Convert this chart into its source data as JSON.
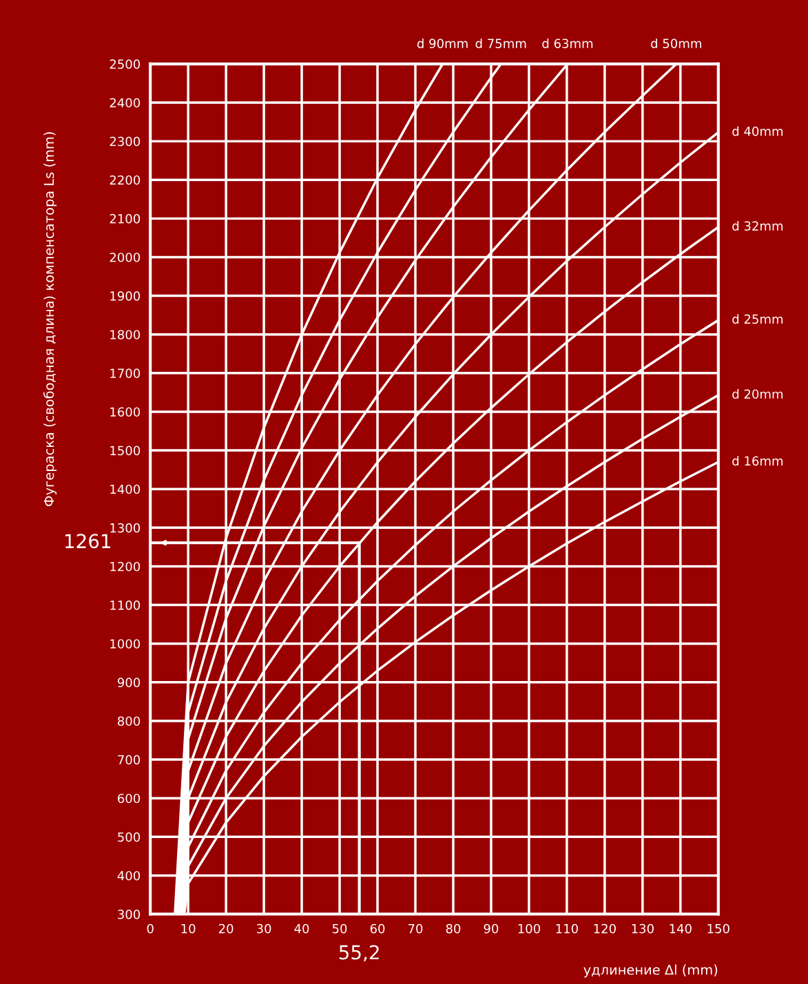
{
  "chart_data": {
    "type": "line",
    "xlabel": "удлинение Δl (mm)",
    "ylabel": "Фугераска (свободная длина) компенсатора Ls (mm)",
    "xlim": [
      0,
      150
    ],
    "ylim": [
      300,
      2500
    ],
    "xticks": [
      0,
      10,
      20,
      30,
      40,
      50,
      60,
      70,
      80,
      90,
      100,
      110,
      120,
      130,
      140,
      150
    ],
    "yticks": [
      300,
      400,
      500,
      600,
      700,
      800,
      900,
      1000,
      1100,
      1200,
      1300,
      1400,
      1500,
      1600,
      1700,
      1800,
      1900,
      2000,
      2100,
      2200,
      2300,
      2400,
      2500
    ],
    "grid": true,
    "marker": "none",
    "line_style": "solid",
    "series": [
      {
        "name": "d 90mm",
        "color": "#ffffff",
        "x": [
          6.5,
          10,
          20,
          30,
          40,
          50,
          60,
          70,
          77.2
        ],
        "values": [
          300,
          900,
          1273,
          1559,
          1800,
          2012,
          2205,
          2381,
          2500
        ]
      },
      {
        "name": "d 75mm",
        "color": "#ffffff",
        "x": [
          7,
          10,
          20,
          30,
          40,
          50,
          60,
          70,
          80,
          90,
          92.6
        ],
        "values": [
          300,
          822,
          1162,
          1423,
          1643,
          1837,
          2012,
          2174,
          2324,
          2465,
          2500
        ]
      },
      {
        "name": "d 63mm",
        "color": "#ffffff",
        "x": [
          7,
          10,
          20,
          30,
          40,
          50,
          60,
          70,
          80,
          90,
          100,
          110.2
        ],
        "values": [
          300,
          753,
          1065,
          1304,
          1506,
          1684,
          1844,
          1992,
          2130,
          2259,
          2381,
          2500
        ]
      },
      {
        "name": "d 50mm",
        "color": "#ffffff",
        "x": [
          7.5,
          10,
          20,
          30,
          40,
          50,
          60,
          70,
          80,
          90,
          100,
          110,
          120,
          130,
          138.9
        ],
        "values": [
          300,
          671,
          949,
          1162,
          1342,
          1500,
          1643,
          1775,
          1897,
          2012,
          2121,
          2225,
          2324,
          2418,
          2500
        ]
      },
      {
        "name": "d 40mm",
        "color": "#ffffff",
        "x": [
          7.5,
          10,
          20,
          30,
          40,
          50,
          60,
          70,
          80,
          90,
          100,
          110,
          120,
          130,
          140,
          150
        ],
        "values": [
          300,
          600,
          848,
          1039,
          1200,
          1341,
          1469,
          1587,
          1697,
          1800,
          1897,
          1990,
          2078,
          2163,
          2245,
          2323
        ]
      },
      {
        "name": "d 32mm",
        "color": "#ffffff",
        "x": [
          8,
          10,
          20,
          30,
          40,
          50,
          60,
          70,
          80,
          90,
          100,
          110,
          120,
          130,
          140,
          150
        ],
        "values": [
          300,
          537,
          759,
          929,
          1073,
          1200,
          1314,
          1420,
          1518,
          1610,
          1697,
          1780,
          1859,
          1935,
          2008,
          2078
        ]
      },
      {
        "name": "d 25mm",
        "color": "#ffffff",
        "x": [
          8,
          10,
          20,
          30,
          40,
          50,
          60,
          70,
          80,
          90,
          100,
          110,
          120,
          130,
          140,
          150
        ],
        "values": [
          300,
          474,
          671,
          822,
          949,
          1061,
          1162,
          1255,
          1342,
          1423,
          1500,
          1573,
          1643,
          1710,
          1775,
          1837
        ]
      },
      {
        "name": "d 20mm",
        "color": "#ffffff",
        "x": [
          8.5,
          10,
          20,
          30,
          40,
          50,
          60,
          70,
          80,
          90,
          100,
          110,
          120,
          130,
          140,
          150
        ],
        "values": [
          300,
          424,
          600,
          735,
          849,
          949,
          1039,
          1123,
          1200,
          1273,
          1342,
          1407,
          1470,
          1530,
          1587,
          1643
        ]
      },
      {
        "name": "d 16mm",
        "color": "#ffffff",
        "x": [
          9,
          10,
          20,
          30,
          40,
          50,
          60,
          70,
          80,
          90,
          100,
          110,
          120,
          130,
          140,
          150
        ],
        "values": [
          300,
          379,
          537,
          657,
          759,
          849,
          930,
          1004,
          1073,
          1138,
          1200,
          1259,
          1315,
          1368,
          1420,
          1470
        ]
      }
    ],
    "ref_lines": [
      {
        "axis": "y",
        "value": 1261,
        "label": "1261",
        "color": "#ffffff"
      },
      {
        "axis": "x",
        "value": 55.2,
        "label": "55,2",
        "color": "#ffffff"
      }
    ]
  }
}
